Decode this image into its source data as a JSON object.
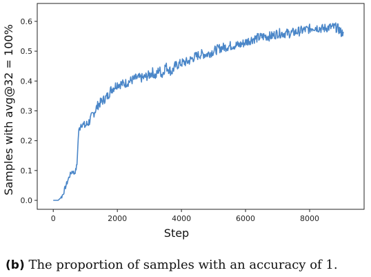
{
  "chart_data": {
    "type": "line",
    "title": "",
    "xlabel": "Step",
    "ylabel": "Samples with avg@32 = 100%",
    "xlim": [
      -500,
      9700
    ],
    "ylim": [
      -0.03,
      0.66
    ],
    "xticks": [
      0,
      2000,
      4000,
      6000,
      8000
    ],
    "xtick_labels": [
      "0",
      "2000",
      "4000",
      "6000",
      "8000"
    ],
    "yticks": [
      0.0,
      0.1,
      0.2,
      0.3,
      0.4,
      0.5,
      0.6
    ],
    "ytick_labels": [
      "0.0",
      "0.1",
      "0.2",
      "0.3",
      "0.4",
      "0.5",
      "0.6"
    ],
    "grid": false,
    "legend": "none",
    "series": [
      {
        "color": "#4a86c8",
        "x": [
          0,
          100,
          150,
          200,
          250,
          300,
          350,
          400,
          450,
          500,
          550,
          600,
          650,
          700,
          740,
          780,
          800,
          850,
          900,
          950,
          1000,
          1100,
          1200,
          1300,
          1400,
          1500,
          1600,
          1700,
          1800,
          1900,
          2000,
          2200,
          2400,
          2600,
          2800,
          3000,
          3100,
          3200,
          3300,
          3400,
          3500,
          3600,
          3700,
          3800,
          4000,
          4200,
          4400,
          4600,
          4800,
          5000,
          5200,
          5400,
          5600,
          5800,
          6000,
          6200,
          6400,
          6600,
          6800,
          7000,
          7200,
          7400,
          7600,
          7800,
          8000,
          8100,
          8200,
          8400,
          8600,
          8800,
          8900,
          9000,
          9050
        ],
        "values": [
          0.0,
          0.0,
          0.0,
          0.005,
          0.01,
          0.02,
          0.035,
          0.05,
          0.065,
          0.08,
          0.09,
          0.1,
          0.09,
          0.1,
          0.12,
          0.21,
          0.23,
          0.255,
          0.26,
          0.25,
          0.25,
          0.26,
          0.28,
          0.3,
          0.32,
          0.33,
          0.34,
          0.35,
          0.37,
          0.38,
          0.39,
          0.39,
          0.4,
          0.41,
          0.41,
          0.42,
          0.43,
          0.415,
          0.44,
          0.42,
          0.45,
          0.44,
          0.43,
          0.45,
          0.46,
          0.465,
          0.48,
          0.49,
          0.49,
          0.5,
          0.51,
          0.515,
          0.52,
          0.52,
          0.53,
          0.54,
          0.545,
          0.55,
          0.55,
          0.56,
          0.56,
          0.56,
          0.565,
          0.57,
          0.575,
          0.58,
          0.58,
          0.575,
          0.58,
          0.58,
          0.575,
          0.56,
          0.565
        ]
      }
    ]
  },
  "caption": {
    "tag": "(b)",
    "text": "The proportion of samples with an accuracy of 1."
  }
}
